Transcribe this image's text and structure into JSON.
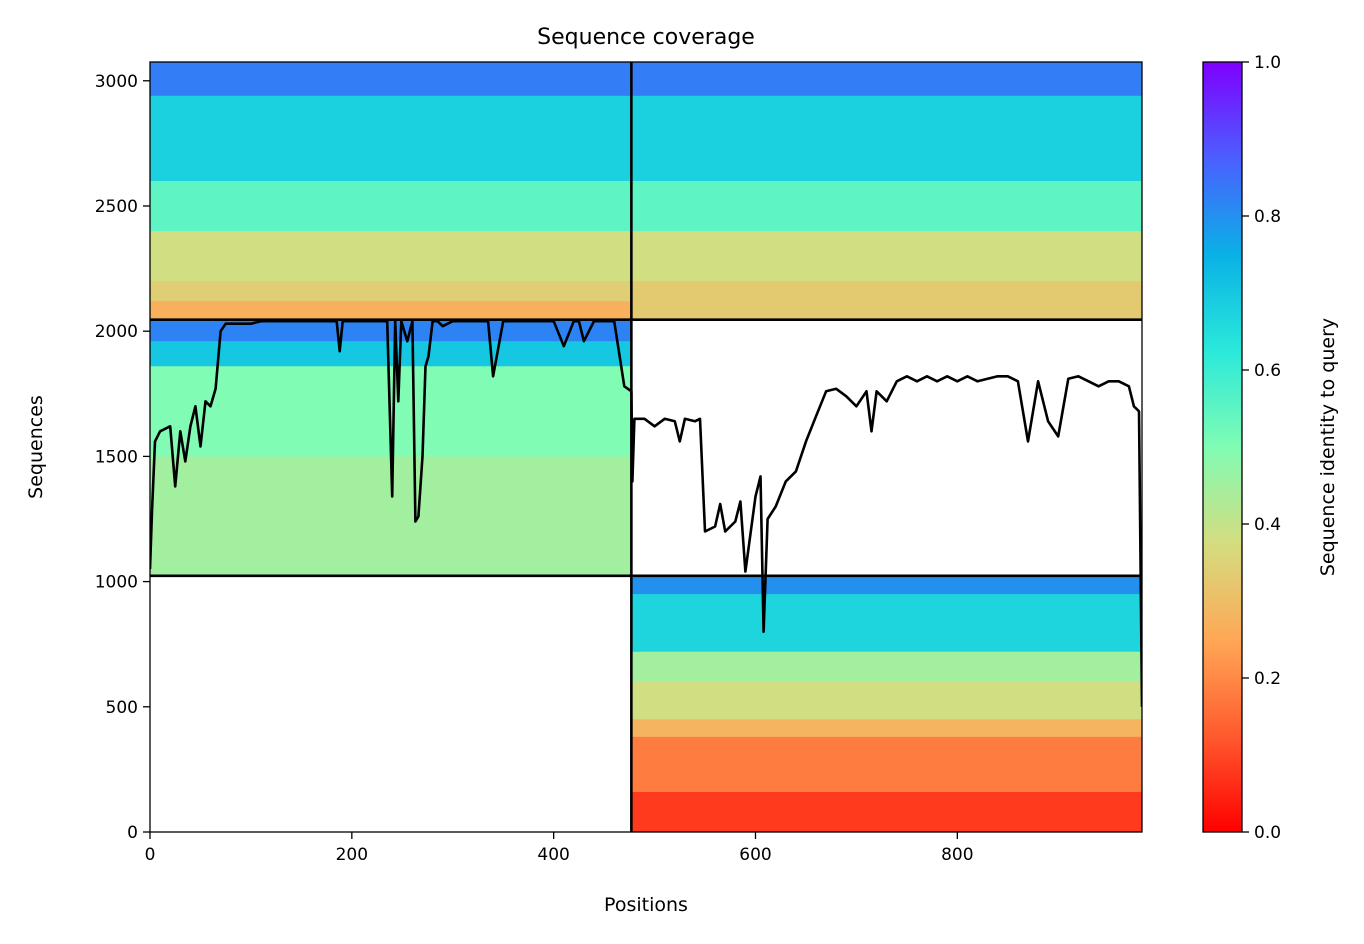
{
  "chart_data": {
    "type": "heatmap",
    "title": "Sequence coverage",
    "xlabel": "Positions",
    "ylabel": "Sequences",
    "xlim": [
      0,
      983
    ],
    "ylim": [
      0,
      3075
    ],
    "xticks": [
      0,
      200,
      400,
      600,
      800
    ],
    "yticks": [
      0,
      500,
      1000,
      1500,
      2000,
      2500,
      3000
    ],
    "colorbar": {
      "label": "Sequence identity to query",
      "range": [
        0,
        1
      ],
      "ticks": [
        "0.0",
        "0.2",
        "0.4",
        "0.6",
        "0.8",
        "1.0"
      ],
      "colormap": "rainbow_r"
    },
    "grid": false,
    "legend": "none",
    "domain_boundary_x": 477,
    "block_boundaries_y": [
      1023,
      2046
    ],
    "blocks": [
      {
        "name": "top-left",
        "x": [
          0,
          477
        ],
        "y": [
          2046,
          3075
        ],
        "bands": [
          {
            "y": [
              2940,
              3075
            ],
            "identity": 0.83
          },
          {
            "y": [
              2600,
              2940
            ],
            "identity": 0.68
          },
          {
            "y": [
              2400,
              2600
            ],
            "identity": 0.55
          },
          {
            "y": [
              2200,
              2400
            ],
            "identity": 0.38
          },
          {
            "y": [
              2120,
              2200
            ],
            "identity": 0.34
          },
          {
            "y": [
              2046,
              2120
            ],
            "identity": 0.27
          }
        ]
      },
      {
        "name": "top-right",
        "x": [
          477,
          983
        ],
        "y": [
          2046,
          3075
        ],
        "bands": [
          {
            "y": [
              2940,
              3075
            ],
            "identity": 0.83
          },
          {
            "y": [
              2600,
              2940
            ],
            "identity": 0.68
          },
          {
            "y": [
              2400,
              2600
            ],
            "identity": 0.55
          },
          {
            "y": [
              2200,
              2400
            ],
            "identity": 0.38
          },
          {
            "y": [
              2046,
              2200
            ],
            "identity": 0.33
          }
        ]
      },
      {
        "name": "middle-left",
        "x": [
          0,
          477
        ],
        "y": [
          1023,
          2046
        ],
        "bands": [
          {
            "y": [
              1960,
              2046
            ],
            "identity": 0.82
          },
          {
            "y": [
              1860,
              1960
            ],
            "identity": 0.7
          },
          {
            "y": [
              1500,
              1860
            ],
            "identity": 0.5
          },
          {
            "y": [
              1023,
              1500
            ],
            "identity": 0.45
          }
        ]
      },
      {
        "name": "bottom-right",
        "x": [
          477,
          983
        ],
        "y": [
          0,
          1023
        ],
        "bands": [
          {
            "y": [
              950,
              1023
            ],
            "identity": 0.8
          },
          {
            "y": [
              720,
              950
            ],
            "identity": 0.67
          },
          {
            "y": [
              600,
              720
            ],
            "identity": 0.45
          },
          {
            "y": [
              450,
              600
            ],
            "identity": 0.38
          },
          {
            "y": [
              380,
              450
            ],
            "identity": 0.28
          },
          {
            "y": [
              160,
              380
            ],
            "identity": 0.18
          },
          {
            "y": [
              0,
              160
            ],
            "identity": 0.08
          }
        ]
      }
    ],
    "coverage_line": {
      "x": [
        0,
        2,
        5,
        10,
        20,
        25,
        30,
        35,
        40,
        45,
        50,
        55,
        60,
        65,
        70,
        75,
        80,
        90,
        95,
        100,
        110,
        120,
        130,
        150,
        170,
        185,
        188,
        191,
        200,
        220,
        235,
        240,
        243,
        246,
        249,
        255,
        260,
        263,
        266,
        270,
        273,
        276,
        280,
        285,
        290,
        300,
        320,
        335,
        340,
        350,
        355,
        360,
        380,
        395,
        400,
        410,
        420,
        425,
        430,
        440,
        460,
        470,
        477,
        478,
        480,
        490,
        500,
        510,
        520,
        525,
        530,
        540,
        545,
        550,
        560,
        565,
        570,
        580,
        585,
        590,
        600,
        605,
        608,
        612,
        620,
        630,
        640,
        650,
        660,
        670,
        680,
        690,
        700,
        710,
        715,
        720,
        730,
        740,
        750,
        760,
        770,
        780,
        790,
        800,
        810,
        820,
        830,
        840,
        850,
        860,
        870,
        880,
        890,
        900,
        910,
        920,
        930,
        940,
        950,
        960,
        970,
        975,
        980,
        983
      ],
      "y": [
        1050,
        1280,
        1560,
        1600,
        1620,
        1380,
        1600,
        1480,
        1620,
        1700,
        1540,
        1720,
        1700,
        1770,
        2000,
        2030,
        2030,
        2030,
        2030,
        2030,
        2040,
        2040,
        2040,
        2040,
        2040,
        2040,
        1920,
        2040,
        2040,
        2040,
        2040,
        1340,
        2040,
        1720,
        2040,
        1960,
        2040,
        1240,
        1260,
        1500,
        1860,
        1900,
        2040,
        2040,
        2020,
        2040,
        2040,
        2040,
        1820,
        2040,
        2040,
        2040,
        2040,
        2040,
        2040,
        1940,
        2040,
        2040,
        1960,
        2040,
        2040,
        1780,
        1760,
        1400,
        1650,
        1650,
        1620,
        1650,
        1640,
        1560,
        1650,
        1640,
        1650,
        1200,
        1220,
        1310,
        1200,
        1240,
        1320,
        1040,
        1340,
        1420,
        800,
        1250,
        1300,
        1400,
        1440,
        1560,
        1660,
        1760,
        1770,
        1740,
        1700,
        1760,
        1600,
        1760,
        1720,
        1800,
        1820,
        1800,
        1820,
        1800,
        1820,
        1800,
        1820,
        1800,
        1810,
        1820,
        1820,
        1800,
        1560,
        1800,
        1640,
        1580,
        1810,
        1820,
        1800,
        1780,
        1800,
        1800,
        1780,
        1700,
        1680,
        500
      ]
    }
  }
}
